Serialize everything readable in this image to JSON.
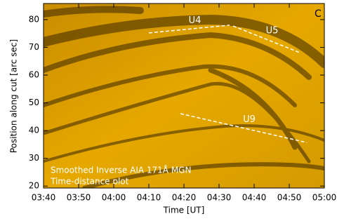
{
  "chart_data": {
    "type": "line",
    "panel_label": "C",
    "xlabel": "Time [UT]",
    "ylabel": "Position along cut [arc sec]",
    "annotations": [
      "Smoothed Inverse AIA 171Å MGN",
      "Time-distance plot"
    ],
    "xlim": [
      "03:40",
      "05:00"
    ],
    "xticks": [
      "03:40",
      "03:50",
      "04:00",
      "04:10",
      "04:20",
      "04:30",
      "04:40",
      "04:50",
      "05:00"
    ],
    "ylim": [
      19.3,
      85.8
    ],
    "yticks": [
      20,
      30,
      40,
      50,
      60,
      70,
      80
    ],
    "series": [
      {
        "name": "U4",
        "color": "#ffffff",
        "x": [
          "04:10",
          "04:33"
        ],
        "values": [
          75.2,
          78.0
        ]
      },
      {
        "name": "U5",
        "color": "#ffffff",
        "x": [
          "04:34",
          "04:53"
        ],
        "values": [
          77.7,
          68.1
        ]
      },
      {
        "name": "U9",
        "color": "#ffffff",
        "x": [
          "04:19",
          "04:55"
        ],
        "values": [
          46.1,
          35.7
        ]
      }
    ]
  }
}
